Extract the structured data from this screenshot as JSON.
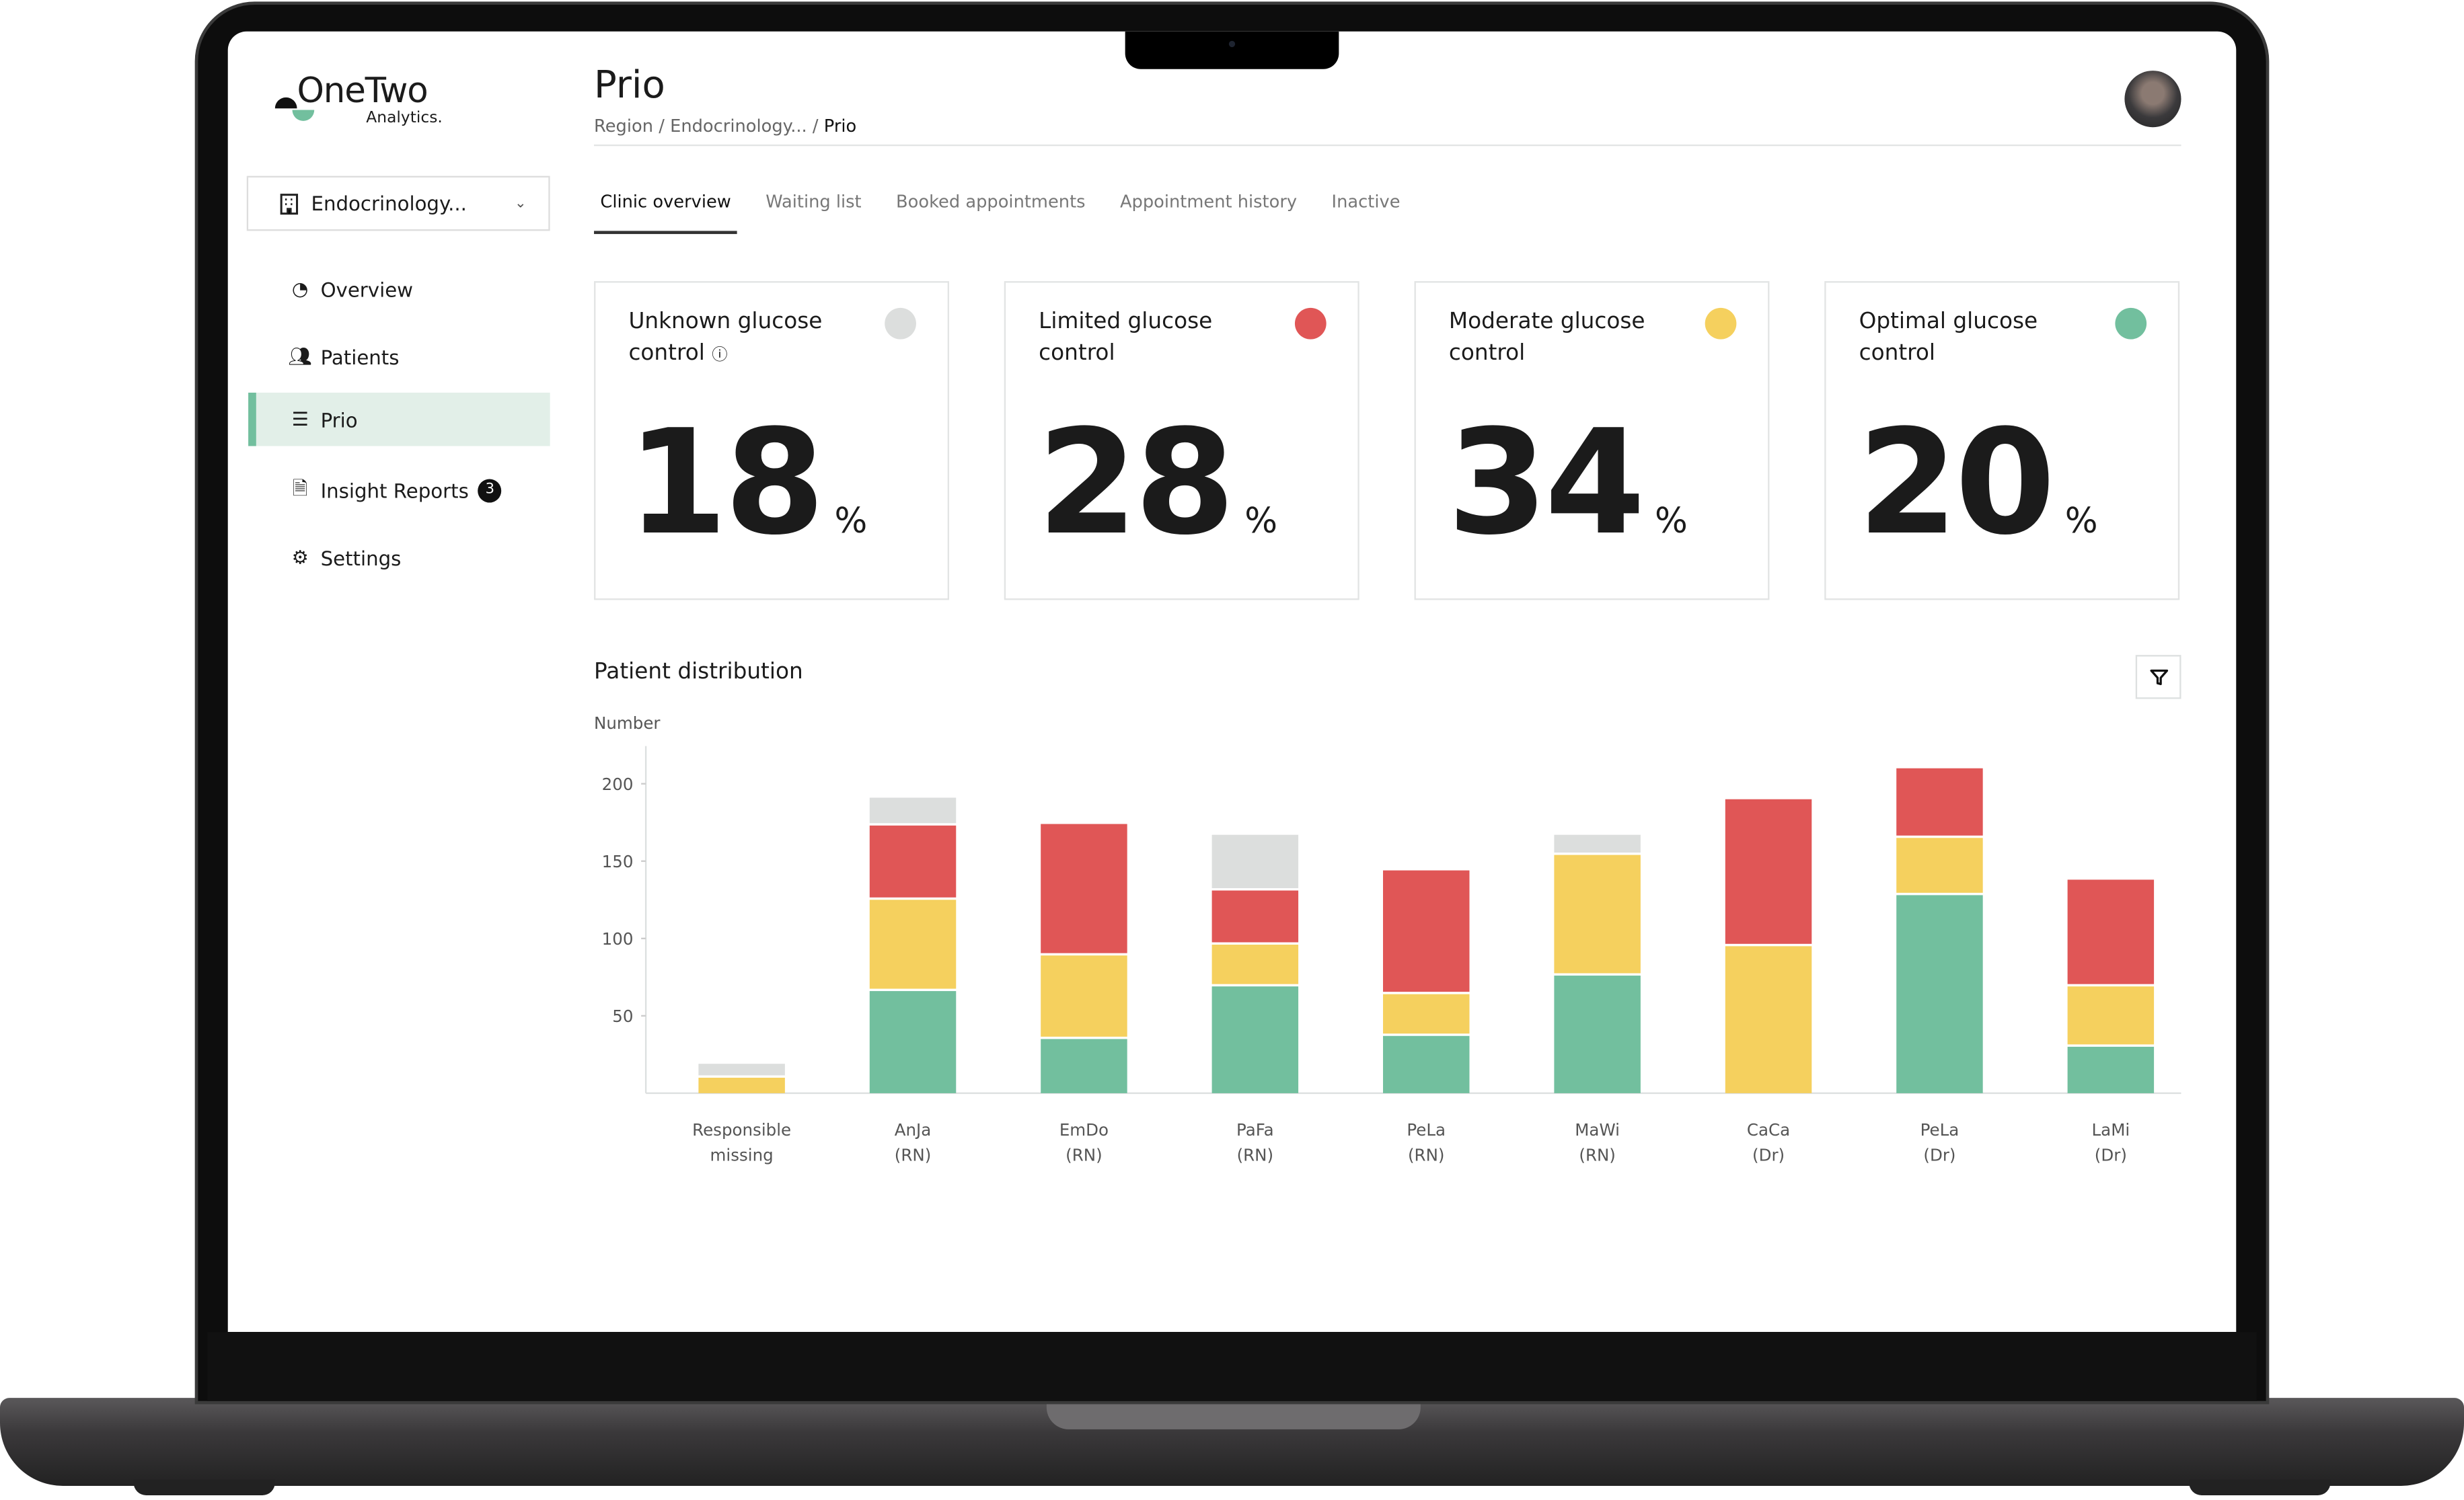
{
  "logo": {
    "name": "OneTwo",
    "sub": "Analytics."
  },
  "clinic_select": {
    "value": "Endocrinology...",
    "icon": "building-icon"
  },
  "sidebar": {
    "items": [
      {
        "label": "Overview",
        "icon": "pie-chart-icon"
      },
      {
        "label": "Patients",
        "icon": "users-icon"
      },
      {
        "label": "Prio",
        "icon": "numbered-list-icon",
        "active": true
      },
      {
        "label": "Insight Reports",
        "icon": "report-icon",
        "badge": "3"
      },
      {
        "label": "Settings",
        "icon": "gear-icon"
      }
    ]
  },
  "header": {
    "title": "Prio",
    "breadcrumb": [
      "Region",
      "Endocrinology...",
      "Prio"
    ],
    "sep": "/"
  },
  "tabs": [
    {
      "label": "Clinic overview",
      "active": true
    },
    {
      "label": "Waiting list"
    },
    {
      "label": "Booked appointments"
    },
    {
      "label": "Appointment history"
    },
    {
      "label": "Inactive"
    }
  ],
  "cards": [
    {
      "title": "Unknown glucose control",
      "value": "18",
      "unit": "%",
      "color": "#dcdedd",
      "info": true
    },
    {
      "title": "Limited glucose control",
      "value": "28",
      "unit": "%",
      "color": "#e05656"
    },
    {
      "title": "Moderate glucose control",
      "value": "34",
      "unit": "%",
      "color": "#f5d05e"
    },
    {
      "title": "Optimal glucose control",
      "value": "20",
      "unit": "%",
      "color": "#72bf9e"
    }
  ],
  "distribution": {
    "title": "Patient distribution",
    "filter_icon": "filter-icon"
  },
  "chart_data": {
    "type": "bar",
    "stacked": true,
    "ylabel": "Number",
    "ylim": [
      0,
      220
    ],
    "yticks": [
      50,
      100,
      150,
      200
    ],
    "grid": false,
    "categories": [
      [
        "Responsible",
        "missing"
      ],
      [
        "AnJa",
        "(RN)"
      ],
      [
        "EmDo",
        "(RN)"
      ],
      [
        "PaFa",
        "(RN)"
      ],
      [
        "PeLa",
        "(RN)"
      ],
      [
        "MaWi",
        "(RN)"
      ],
      [
        "CaCa",
        "(Dr)"
      ],
      [
        "PeLa",
        "(Dr)"
      ],
      [
        "LaMi",
        "(Dr)"
      ]
    ],
    "series": [
      {
        "key": "optimal",
        "color": "#72bf9e",
        "values": [
          0,
          66,
          35,
          69,
          37,
          76,
          0,
          128,
          30
        ]
      },
      {
        "key": "moderate",
        "color": "#f5d05e",
        "values": [
          10,
          59,
          54,
          27,
          27,
          78,
          95,
          37,
          39
        ]
      },
      {
        "key": "limited",
        "color": "#e05656",
        "values": [
          0,
          48,
          85,
          35,
          80,
          0,
          95,
          45,
          69
        ]
      },
      {
        "key": "unknown",
        "color": "#dcdedd",
        "values": [
          9,
          18,
          0,
          36,
          0,
          13,
          0,
          0,
          0
        ]
      }
    ]
  }
}
